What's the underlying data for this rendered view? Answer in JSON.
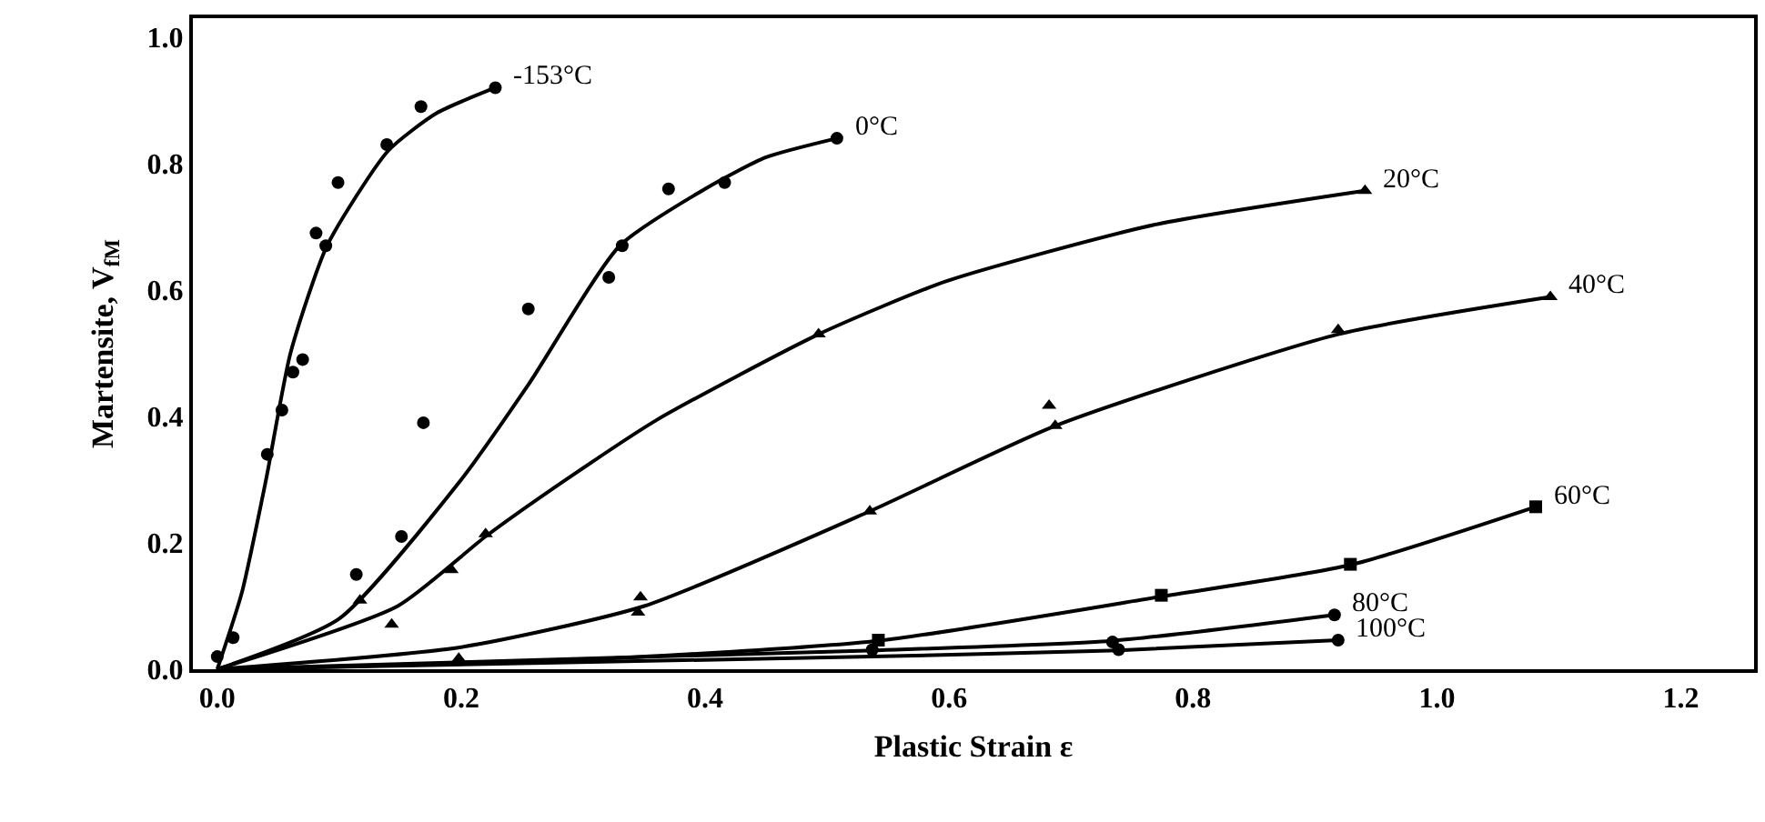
{
  "chart_data": {
    "type": "scatter",
    "xlabel": "Plastic Strain ε",
    "ylabel": "Martensite, V$_{fM}$",
    "xlim": [
      -0.02,
      1.26
    ],
    "ylim": [
      0,
      1.03
    ],
    "xticks": [
      {
        "value": 0,
        "label": "0.0"
      },
      0.2,
      0.4,
      0.6,
      0.8,
      {
        "value": 1,
        "label": "1.0"
      },
      {
        "value": 1.2,
        "label": "1.2"
      }
    ],
    "yticks": [
      {
        "value": 0,
        "label": "0.0"
      },
      0.2,
      0.4,
      0.6,
      0.8,
      {
        "value": 1,
        "label": "1.0"
      }
    ],
    "grid": false,
    "legend": false,
    "series": [
      {
        "name": "-153°C",
        "type": "scatter",
        "marker": "circle",
        "color": "#000000",
        "x": [
          0.0,
          0.013,
          0.041,
          0.053,
          0.062,
          0.07,
          0.081,
          0.089,
          0.099,
          0.139,
          0.167,
          0.228
        ],
        "values": [
          0.02,
          0.05,
          0.34,
          0.41,
          0.47,
          0.49,
          0.69,
          0.67,
          0.77,
          0.83,
          0.89,
          0.92
        ]
      },
      {
        "type": "line",
        "marker": "none",
        "color": "#000000",
        "x": [
          0,
          0.02,
          0.04,
          0.06,
          0.09,
          0.14,
          0.18,
          0.228
        ],
        "values": [
          0,
          0.12,
          0.3,
          0.5,
          0.67,
          0.82,
          0.88,
          0.92
        ]
      },
      {
        "name": "0°C",
        "type": "scatter",
        "marker": "circle",
        "color": "#000000",
        "x": [
          0.114,
          0.151,
          0.169,
          0.255,
          0.321,
          0.332,
          0.37,
          0.416,
          0.508
        ],
        "values": [
          0.15,
          0.21,
          0.39,
          0.57,
          0.62,
          0.67,
          0.76,
          0.77,
          0.84
        ]
      },
      {
        "type": "line",
        "marker": "none",
        "color": "#000000",
        "x": [
          0,
          0.1,
          0.2,
          0.255,
          0.33,
          0.4,
          0.45,
          0.508
        ],
        "values": [
          0,
          0.08,
          0.3,
          0.45,
          0.67,
          0.76,
          0.81,
          0.84
        ]
      },
      {
        "name": "20°C",
        "type": "scatter",
        "marker": "triangle",
        "color": "#000000",
        "x": [
          0.117,
          0.143,
          0.192,
          0.22,
          0.493,
          0.941
        ],
        "values": [
          0.109,
          0.071,
          0.157,
          0.214,
          0.53,
          0.757
        ]
      },
      {
        "type": "line",
        "marker": "none",
        "color": "#000000",
        "x": [
          0,
          0.148,
          0.22,
          0.286,
          0.36,
          0.493,
          0.598,
          0.768,
          0.941
        ],
        "values": [
          0,
          0.1,
          0.21,
          0.3,
          0.394,
          0.53,
          0.614,
          0.703,
          0.757
        ]
      },
      {
        "name": "40°C",
        "type": "scatter",
        "marker": "triangle",
        "color": "#000000",
        "x": [
          0.198,
          0.345,
          0.347,
          0.535,
          0.682,
          0.687,
          0.919,
          1.093
        ],
        "values": [
          0.017,
          0.09,
          0.114,
          0.25,
          0.417,
          0.385,
          0.537,
          0.589
        ]
      },
      {
        "type": "line",
        "marker": "none",
        "color": "#000000",
        "x": [
          0,
          0.2,
          0.35,
          0.535,
          0.687,
          0.919,
          1.093
        ],
        "values": [
          0,
          0.035,
          0.1,
          0.25,
          0.385,
          0.53,
          0.589
        ]
      },
      {
        "name": "60°C",
        "type": "scatter",
        "marker": "square",
        "color": "#000000",
        "x": [
          0.542,
          0.774,
          0.929,
          1.081
        ],
        "values": [
          0.046,
          0.117,
          0.166,
          0.257
        ]
      },
      {
        "type": "line",
        "marker": "none",
        "color": "#000000",
        "x": [
          0,
          0.3,
          0.542,
          0.774,
          0.929,
          1.081
        ],
        "values": [
          0,
          0.015,
          0.045,
          0.115,
          0.165,
          0.257
        ]
      },
      {
        "name": "80°C",
        "type": "scatter",
        "marker": "circle",
        "color": "#000000",
        "x": [
          0.734,
          0.916
        ],
        "values": [
          0.043,
          0.086
        ]
      },
      {
        "type": "line",
        "marker": "none",
        "color": "#000000",
        "x": [
          0,
          0.54,
          0.734,
          0.916
        ],
        "values": [
          0,
          0.03,
          0.045,
          0.086
        ]
      },
      {
        "name": "100°C",
        "type": "scatter",
        "marker": "circle",
        "color": "#000000",
        "x": [
          0.537,
          0.739,
          0.919
        ],
        "values": [
          0.031,
          0.031,
          0.046
        ]
      },
      {
        "type": "line",
        "marker": "none",
        "color": "#000000",
        "x": [
          0,
          0.537,
          0.739,
          0.919
        ],
        "values": [
          0,
          0.02,
          0.03,
          0.046
        ]
      }
    ]
  }
}
